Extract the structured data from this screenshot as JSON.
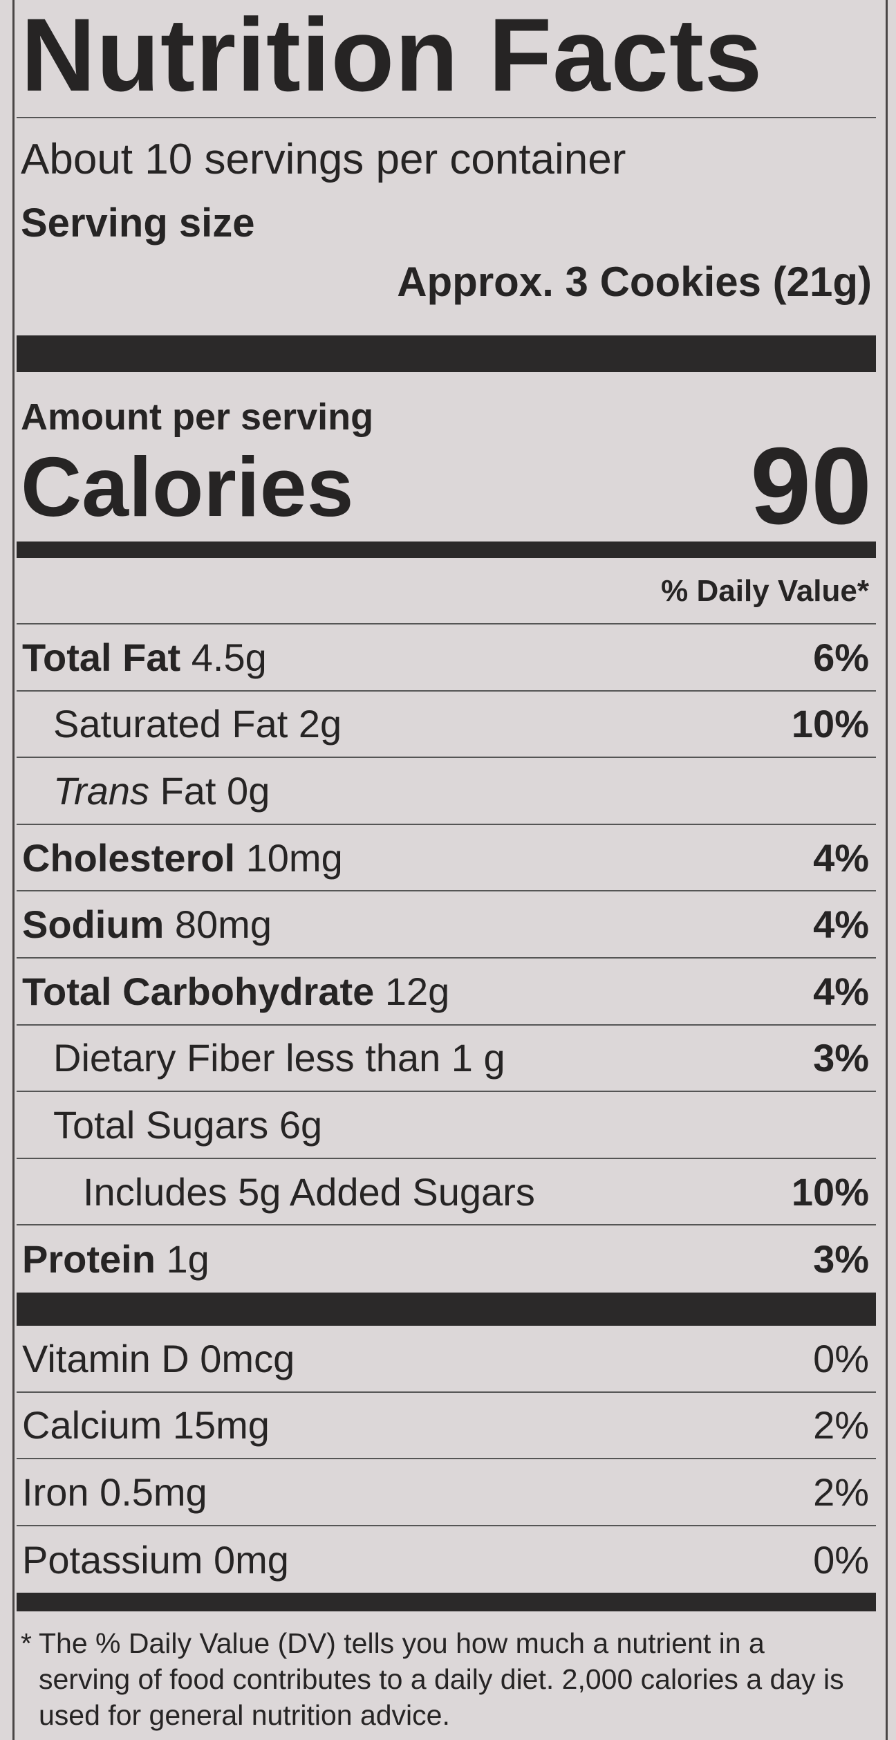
{
  "header": {
    "title": "Nutrition Facts",
    "servings": "About 10 servings per container",
    "serving_size_label": "Serving size",
    "serving_size": "Approx. 3 Cookies (21g)"
  },
  "calories": {
    "amount_label": "Amount per serving",
    "label": "Calories",
    "value": 90
  },
  "daily_value_header": "% Daily Value*",
  "nutrients": [
    {
      "name": "Total Fat",
      "amount": "4.5g",
      "dv": "6%"
    },
    {
      "name": "Saturated Fat",
      "amount": "2g",
      "dv": "10%"
    },
    {
      "name_italic": "Trans",
      "name": "Fat",
      "amount": "0g"
    },
    {
      "name": "Cholesterol",
      "amount": "10mg",
      "dv": "4%"
    },
    {
      "name": "Sodium",
      "amount": "80mg",
      "dv": "4%"
    },
    {
      "name": "Total Carbohydrate",
      "amount": "12g",
      "dv": "4%"
    },
    {
      "name": "Dietary Fiber",
      "amount": "less than 1 g",
      "dv": "3%"
    },
    {
      "name": "Total Sugars",
      "amount": "6g"
    },
    {
      "name": "Includes 5g Added Sugars",
      "dv": "10%"
    },
    {
      "name": "Protein",
      "amount": "1g",
      "dv": "3%"
    }
  ],
  "vitamins": [
    {
      "name": "Vitamin D",
      "amount": "0mcg",
      "dv": "0%"
    },
    {
      "name": "Calcium",
      "amount": "15mg",
      "dv": "2%"
    },
    {
      "name": "Iron",
      "amount": "0.5mg",
      "dv": "2%"
    },
    {
      "name": "Potassium",
      "amount": "0mg",
      "dv": "0%"
    }
  ],
  "footnote": {
    "mark": "*",
    "text": "The % Daily Value (DV) tells you how much a nutrient in a serving of food contributes to a daily diet. 2,000 calories a day is used for general nutrition advice."
  }
}
